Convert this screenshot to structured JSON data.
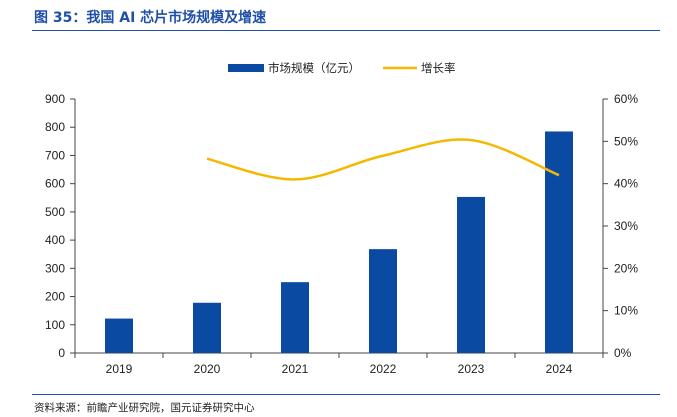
{
  "figure": {
    "title": "图 35：我国 AI 芯片市场规模及增速",
    "source": "资料来源：前瞻产业研究院，国元证券研究中心"
  },
  "colors": {
    "bar": "#0a4aa3",
    "line": "#f5b800",
    "rule": "#1f4fa8"
  },
  "chart_data": {
    "type": "bar",
    "categories": [
      "2019",
      "2020",
      "2021",
      "2022",
      "2023",
      "2024"
    ],
    "series": [
      {
        "name": "市场规模（亿元）",
        "type": "bar",
        "axis": "left",
        "values": [
          122,
          178,
          251,
          368,
          553,
          785
        ]
      },
      {
        "name": "增长率",
        "type": "line",
        "axis": "right",
        "values": [
          null,
          45.9,
          41.0,
          46.6,
          50.3,
          42.0
        ]
      }
    ],
    "left_axis": {
      "ylim": [
        0,
        900
      ],
      "ticks": [
        "0",
        "100",
        "200",
        "300",
        "400",
        "500",
        "600",
        "700",
        "800",
        "900"
      ]
    },
    "right_axis": {
      "ylim": [
        0,
        60
      ],
      "ticks": [
        "0%",
        "10%",
        "20%",
        "30%",
        "40%",
        "50%",
        "60%"
      ]
    },
    "legend_position": "top-center",
    "grid": false
  }
}
